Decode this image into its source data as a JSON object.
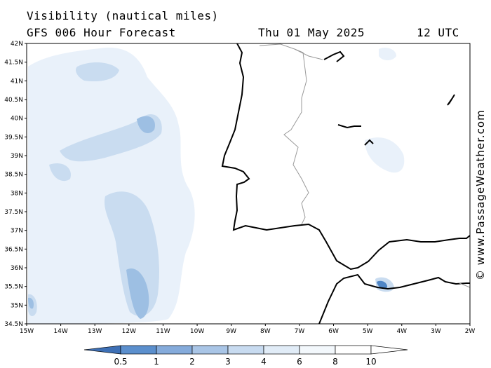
{
  "header": {
    "title": "Visibility (nautical miles)",
    "subtitle": "GFS 006 Hour Forecast",
    "date": "Thu 01 May 2025",
    "time": "12 UTC"
  },
  "credit": "© www.PassageWeather.com",
  "map": {
    "lat_labels": [
      "42N",
      "41.5N",
      "41N",
      "40.5N",
      "40N",
      "39.5N",
      "39N",
      "38.5N",
      "38N",
      "37.5N",
      "37N",
      "36.5N",
      "36N",
      "35.5N",
      "35N",
      "34.5N"
    ],
    "lon_labels": [
      "15W",
      "14W",
      "13W",
      "12W",
      "11W",
      "10W",
      "9W",
      "8W",
      "7W",
      "6W",
      "5W",
      "4W",
      "3W",
      "2W"
    ],
    "colors": {
      "land_outline": "#000000",
      "border": "#9a9a9a",
      "shade_1": "#e9f1fa",
      "shade_2": "#c9dcf0",
      "shade_3": "#9dbfe3",
      "shade_4": "#4f86c6"
    }
  },
  "legend": {
    "labels": [
      "0.5",
      "1",
      "2",
      "3",
      "4",
      "6",
      "8",
      "10"
    ],
    "colors": [
      "#3d6fb5",
      "#5b8fcd",
      "#85abdb",
      "#a9c5e6",
      "#c8dbf0",
      "#e1ecf7",
      "#f3f8fc",
      "#ffffff"
    ]
  }
}
